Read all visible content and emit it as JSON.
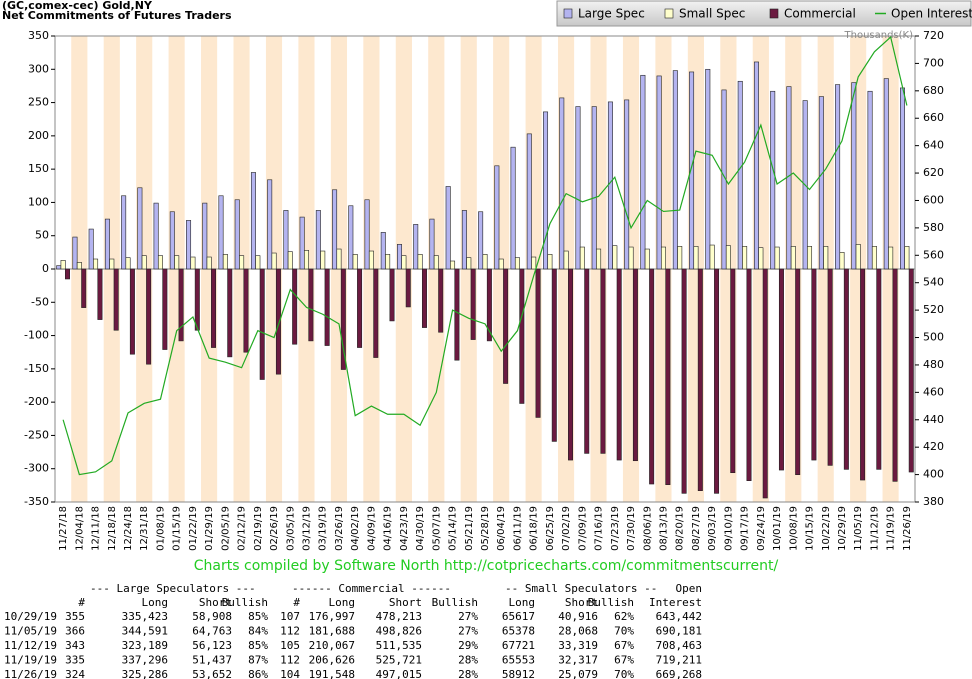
{
  "chart_data": {
    "type": "bar",
    "title": "(GC,comex-cec) Gold,NY",
    "subtitle": "Net Commitments of Futures Traders",
    "y2_label": "Thousands(K)",
    "credit": "Charts compiled by Software North  http://cotpricecharts.com/commitmentscurrent/",
    "categories": [
      "11/27/18",
      "12/04/18",
      "12/11/18",
      "12/18/18",
      "12/24/18",
      "12/31/18",
      "01/08/19",
      "01/15/19",
      "01/22/19",
      "01/29/19",
      "02/05/19",
      "02/12/19",
      "02/19/19",
      "02/26/19",
      "03/05/19",
      "03/12/19",
      "03/19/19",
      "03/26/19",
      "04/02/19",
      "04/09/19",
      "04/16/19",
      "04/23/19",
      "04/30/19",
      "05/07/19",
      "05/14/19",
      "05/21/19",
      "05/28/19",
      "06/04/19",
      "06/11/19",
      "06/18/19",
      "06/25/19",
      "07/02/19",
      "07/09/19",
      "07/16/19",
      "07/23/19",
      "07/30/19",
      "08/06/19",
      "08/13/19",
      "08/20/19",
      "08/27/19",
      "09/03/19",
      "09/10/19",
      "09/17/19",
      "09/24/19",
      "10/01/19",
      "10/08/19",
      "10/15/19",
      "10/22/19",
      "10/29/19",
      "11/05/19",
      "11/12/19",
      "11/19/19",
      "11/26/19"
    ],
    "series": [
      {
        "name": "Large Spec",
        "type": "bar",
        "color": "#b4b4f0",
        "values": [
          5,
          48,
          60,
          75,
          110,
          122,
          99,
          86,
          73,
          99,
          110,
          104,
          145,
          134,
          88,
          78,
          88,
          119,
          95,
          104,
          55,
          37,
          67,
          75,
          124,
          88,
          86,
          155,
          183,
          203,
          236,
          257,
          244,
          244,
          251,
          254,
          291,
          290,
          298,
          296,
          300,
          269,
          282,
          311,
          267,
          274,
          253,
          259,
          277,
          280,
          267,
          286,
          272
        ]
      },
      {
        "name": "Small Spec",
        "type": "bar",
        "color": "#ffffcc",
        "values": [
          13,
          10,
          15,
          15,
          17,
          20,
          20,
          20,
          18,
          18,
          22,
          20,
          20,
          24,
          26,
          28,
          27,
          30,
          22,
          27,
          22,
          20,
          22,
          20,
          12,
          17,
          22,
          15,
          17,
          18,
          22,
          27,
          33,
          30,
          35,
          33,
          30,
          33,
          34,
          34,
          36,
          35,
          34,
          32,
          33,
          34,
          34,
          34,
          25,
          37,
          34,
          33,
          34
        ]
      },
      {
        "name": "Commercial",
        "type": "bar",
        "color": "#6b1a40",
        "values": [
          -15,
          -58,
          -76,
          -92,
          -128,
          -143,
          -121,
          -108,
          -92,
          -118,
          -132,
          -125,
          -166,
          -158,
          -113,
          -108,
          -115,
          -151,
          -118,
          -133,
          -78,
          -57,
          -88,
          -95,
          -137,
          -106,
          -108,
          -172,
          -202,
          -223,
          -259,
          -287,
          -277,
          -277,
          -287,
          -288,
          -323,
          -324,
          -337,
          -333,
          -337,
          -306,
          -318,
          -344,
          -302,
          -309,
          -287,
          -295,
          -301,
          -317,
          -301,
          -319,
          -305
        ]
      },
      {
        "name": "Open Interest",
        "type": "line",
        "axis": "y2",
        "color": "#22aa22",
        "values": [
          440,
          400,
          402,
          410,
          445,
          452,
          455,
          505,
          515,
          485,
          482,
          478,
          505,
          500,
          535,
          522,
          517,
          510,
          443,
          450,
          444,
          444,
          436,
          460,
          520,
          514,
          510,
          490,
          505,
          545,
          583,
          605,
          599,
          603,
          617,
          580,
          600,
          592,
          593,
          636,
          633,
          612,
          628,
          655,
          612,
          620,
          608,
          623,
          643.442,
          690.181,
          708.463,
          719.211,
          669.268
        ]
      }
    ],
    "ylim": [
      -350,
      350
    ],
    "yticks": [
      -350,
      -300,
      -250,
      -200,
      -150,
      -100,
      -50,
      0,
      50,
      100,
      150,
      200,
      250,
      300,
      350
    ],
    "y2lim": [
      380,
      720
    ],
    "y2ticks": [
      380,
      400,
      420,
      440,
      460,
      480,
      500,
      520,
      540,
      560,
      580,
      600,
      620,
      640,
      660,
      680,
      700,
      720
    ],
    "band_colors": [
      "#ffffff",
      "#fde8cf"
    ],
    "table": {
      "group_headers": [
        "--- Large Speculators ---",
        "------ Commercial ------",
        "-- Small Speculators --",
        "Open"
      ],
      "columns": [
        "#",
        "Long",
        "Short",
        "Bullish",
        "#",
        "Long",
        "Short",
        "Bullish",
        "Long",
        "Short",
        "Bullish",
        "Interest"
      ],
      "rows": [
        [
          "10/29/19",
          "355",
          "335,423",
          "58,908",
          "85%",
          "107",
          "176,997",
          "478,213",
          "27%",
          "65617",
          "40,916",
          "62%",
          "643,442"
        ],
        [
          "11/05/19",
          "366",
          "344,591",
          "64,763",
          "84%",
          "112",
          "181,688",
          "498,826",
          "27%",
          "65378",
          "28,068",
          "70%",
          "690,181"
        ],
        [
          "11/12/19",
          "343",
          "323,189",
          "56,123",
          "85%",
          "105",
          "210,067",
          "511,535",
          "29%",
          "67721",
          "33,319",
          "67%",
          "708,463"
        ],
        [
          "11/19/19",
          "335",
          "337,296",
          "51,437",
          "87%",
          "112",
          "206,626",
          "525,721",
          "28%",
          "65553",
          "32,317",
          "67%",
          "719,211"
        ],
        [
          "11/26/19",
          "324",
          "325,286",
          "53,652",
          "86%",
          "104",
          "191,548",
          "497,015",
          "28%",
          "58912",
          "25,079",
          "70%",
          "669,268"
        ]
      ]
    }
  }
}
